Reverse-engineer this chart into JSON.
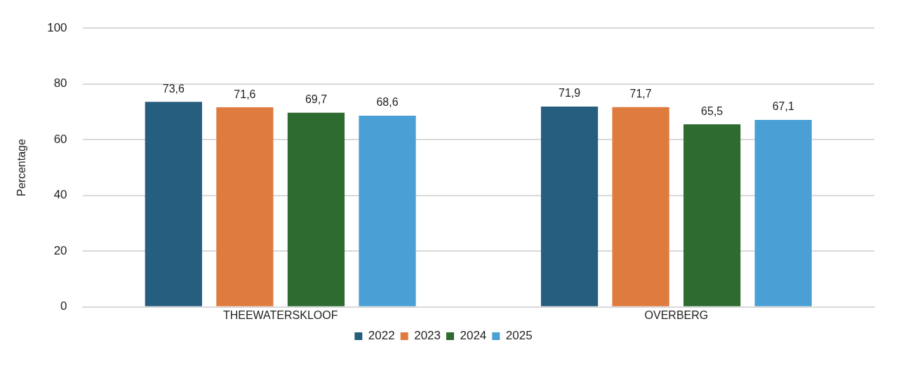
{
  "chart_data": {
    "type": "bar",
    "ylabel": "Percentage",
    "categories": [
      "THEEWATERSKLOOF",
      "OVERBERG"
    ],
    "series": [
      {
        "name": "2022",
        "color": "#255e7e",
        "values": [
          73.6,
          71.9
        ],
        "value_labels": [
          "73,6",
          "71,9"
        ]
      },
      {
        "name": "2023",
        "color": "#e07b3f",
        "values": [
          71.6,
          71.7
        ],
        "value_labels": [
          "71,6",
          "71,7"
        ]
      },
      {
        "name": "2024",
        "color": "#2e6b30",
        "values": [
          69.7,
          65.5
        ],
        "value_labels": [
          "69,7",
          "65,5"
        ]
      },
      {
        "name": "2025",
        "color": "#4aa0d5",
        "values": [
          68.6,
          67.1
        ],
        "value_labels": [
          "68,6",
          "67,1"
        ]
      }
    ],
    "ylim": [
      0,
      100
    ],
    "yticks": [
      0,
      20,
      40,
      60,
      80,
      100
    ],
    "grid": "y",
    "legend": "bottom"
  }
}
